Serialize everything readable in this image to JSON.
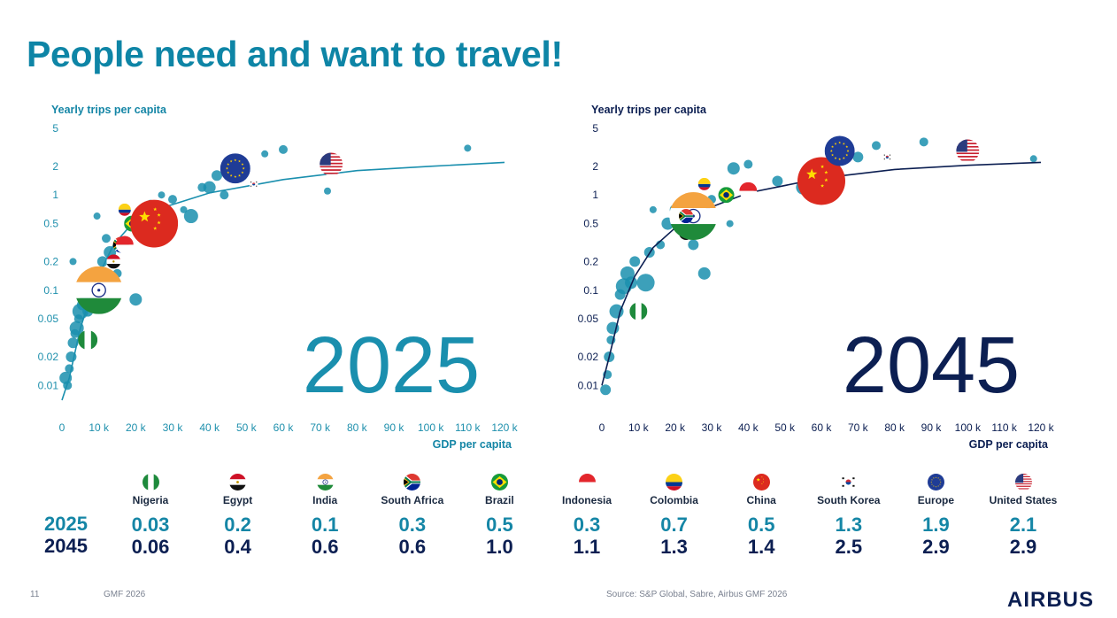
{
  "title": "People need and want to travel!",
  "chart_data": [
    {
      "type": "scatter",
      "year_label": "2025",
      "ylabel": "Yearly trips per capita",
      "xlabel": "GDP per capita",
      "x_ticks": [
        "0",
        "10 k",
        "20 k",
        "30 k",
        "40 k",
        "50 k",
        "60 k",
        "70 k",
        "80 k",
        "90 k",
        "100 k",
        "110 k",
        "120 k"
      ],
      "y_ticks": [
        "5",
        "2",
        "1",
        "0.5",
        "0.2",
        "0.1",
        "0.05",
        "0.02",
        "0.01"
      ],
      "xlim": [
        0,
        120000
      ],
      "y_scale": "log",
      "ylim": [
        0.007,
        5
      ],
      "accent": "#1a8fae",
      "curve": [
        [
          0,
          0.007
        ],
        [
          2000,
          0.012
        ],
        [
          5000,
          0.04
        ],
        [
          9000,
          0.12
        ],
        [
          14000,
          0.3
        ],
        [
          20000,
          0.55
        ],
        [
          28000,
          0.75
        ],
        [
          40000,
          1.05
        ],
        [
          60000,
          1.45
        ],
        [
          80000,
          1.8
        ],
        [
          100000,
          2.0
        ],
        [
          120000,
          2.2
        ]
      ],
      "countries": [
        {
          "key": "nigeria",
          "x": 7000,
          "y": 0.03
        },
        {
          "key": "egypt",
          "x": 14000,
          "y": 0.2
        },
        {
          "key": "india",
          "x": 10000,
          "y": 0.1
        },
        {
          "key": "south_africa",
          "x": 16000,
          "y": 0.3
        },
        {
          "key": "brazil",
          "x": 19000,
          "y": 0.5
        },
        {
          "key": "indonesia",
          "x": 17000,
          "y": 0.3
        },
        {
          "key": "colombia",
          "x": 17000,
          "y": 0.7
        },
        {
          "key": "china",
          "x": 25000,
          "y": 0.5
        },
        {
          "key": "south_korea",
          "x": 52000,
          "y": 1.3
        },
        {
          "key": "europe",
          "x": 47000,
          "y": 1.9
        },
        {
          "key": "united_states",
          "x": 73000,
          "y": 2.1
        }
      ],
      "bubbles": [
        [
          1000,
          0.012,
          7
        ],
        [
          1500,
          0.01,
          5
        ],
        [
          2000,
          0.015,
          5
        ],
        [
          2500,
          0.02,
          6
        ],
        [
          3000,
          0.028,
          6
        ],
        [
          3500,
          0.035,
          5
        ],
        [
          4000,
          0.04,
          8
        ],
        [
          4500,
          0.05,
          5
        ],
        [
          5000,
          0.06,
          9
        ],
        [
          5500,
          0.07,
          6
        ],
        [
          6000,
          0.08,
          5
        ],
        [
          7000,
          0.06,
          6
        ],
        [
          8000,
          0.09,
          7
        ],
        [
          9000,
          0.15,
          5
        ],
        [
          11000,
          0.2,
          6
        ],
        [
          12000,
          0.35,
          5
        ],
        [
          13000,
          0.25,
          7
        ],
        [
          15000,
          0.15,
          5
        ],
        [
          22000,
          0.4,
          6
        ],
        [
          24000,
          0.8,
          5
        ],
        [
          30000,
          0.9,
          5
        ],
        [
          33000,
          0.7,
          4
        ],
        [
          35000,
          0.6,
          8
        ],
        [
          38000,
          1.2,
          5
        ],
        [
          42000,
          1.6,
          6
        ],
        [
          44000,
          1.0,
          5
        ],
        [
          55000,
          2.7,
          4
        ],
        [
          60000,
          3.0,
          5
        ],
        [
          72000,
          1.1,
          4
        ],
        [
          110000,
          3.1,
          4
        ],
        [
          20000,
          0.08,
          7
        ],
        [
          27000,
          1.0,
          4
        ],
        [
          9500,
          0.6,
          4
        ],
        [
          3000,
          0.2,
          4
        ],
        [
          40000,
          1.2,
          7
        ]
      ]
    },
    {
      "type": "scatter",
      "year_label": "2045",
      "ylabel": "Yearly trips per capita",
      "xlabel": "GDP per capita",
      "x_ticks": [
        "0",
        "10 k",
        "20 k",
        "30 k",
        "40 k",
        "50 k",
        "60 k",
        "70 k",
        "80 k",
        "90 k",
        "100 k",
        "110 k",
        "120 k"
      ],
      "y_ticks": [
        "5",
        "2",
        "1",
        "0.5",
        "0.2",
        "0.1",
        "0.05",
        "0.02",
        "0.01"
      ],
      "xlim": [
        0,
        120000
      ],
      "y_scale": "log",
      "ylim": [
        0.007,
        5
      ],
      "accent": "#0c1f52",
      "curve": [
        [
          0,
          0.01
        ],
        [
          2000,
          0.02
        ],
        [
          5000,
          0.06
        ],
        [
          9000,
          0.14
        ],
        [
          14000,
          0.28
        ],
        [
          20000,
          0.45
        ],
        [
          28000,
          0.7
        ],
        [
          40000,
          1.05
        ],
        [
          60000,
          1.5
        ],
        [
          80000,
          1.85
        ],
        [
          100000,
          2.05
        ],
        [
          120000,
          2.2
        ]
      ],
      "countries": [
        {
          "key": "nigeria",
          "x": 10000,
          "y": 0.06
        },
        {
          "key": "egypt",
          "x": 23000,
          "y": 0.4
        },
        {
          "key": "india",
          "x": 25000,
          "y": 0.6
        },
        {
          "key": "south_africa",
          "x": 23000,
          "y": 0.6
        },
        {
          "key": "brazil",
          "x": 34000,
          "y": 1.0
        },
        {
          "key": "indonesia",
          "x": 40000,
          "y": 1.1
        },
        {
          "key": "colombia",
          "x": 28000,
          "y": 1.3
        },
        {
          "key": "china",
          "x": 60000,
          "y": 1.4
        },
        {
          "key": "south_korea",
          "x": 78000,
          "y": 2.5
        },
        {
          "key": "europe",
          "x": 65000,
          "y": 2.9
        },
        {
          "key": "united_states",
          "x": 100000,
          "y": 2.9
        }
      ],
      "bubbles": [
        [
          1000,
          0.009,
          6
        ],
        [
          1500,
          0.013,
          5
        ],
        [
          2000,
          0.02,
          6
        ],
        [
          2500,
          0.03,
          5
        ],
        [
          3000,
          0.04,
          7
        ],
        [
          4000,
          0.06,
          8
        ],
        [
          5000,
          0.09,
          6
        ],
        [
          6000,
          0.11,
          9
        ],
        [
          7000,
          0.15,
          8
        ],
        [
          8000,
          0.12,
          7
        ],
        [
          9000,
          0.2,
          6
        ],
        [
          12000,
          0.12,
          10
        ],
        [
          13000,
          0.25,
          6
        ],
        [
          16000,
          0.3,
          5
        ],
        [
          18000,
          0.5,
          7
        ],
        [
          20000,
          0.7,
          6
        ],
        [
          25000,
          0.3,
          6
        ],
        [
          28000,
          0.15,
          7
        ],
        [
          30000,
          0.9,
          5
        ],
        [
          36000,
          1.9,
          7
        ],
        [
          40000,
          2.1,
          5
        ],
        [
          48000,
          1.4,
          6
        ],
        [
          55000,
          1.2,
          8
        ],
        [
          70000,
          2.5,
          6
        ],
        [
          75000,
          3.3,
          5
        ],
        [
          88000,
          3.6,
          5
        ],
        [
          118000,
          2.4,
          4
        ],
        [
          130000,
          0,
          0
        ],
        [
          14000,
          0.7,
          4
        ],
        [
          22000,
          0.55,
          5
        ],
        [
          35000,
          0.5,
          4
        ]
      ]
    }
  ],
  "table": {
    "row_labels": {
      "y2025": "2025",
      "y2045": "2045"
    },
    "countries": [
      {
        "key": "nigeria",
        "name": "Nigeria",
        "v2025": "0.03",
        "v2045": "0.06"
      },
      {
        "key": "egypt",
        "name": "Egypt",
        "v2025": "0.2",
        "v2045": "0.4"
      },
      {
        "key": "india",
        "name": "India",
        "v2025": "0.1",
        "v2045": "0.6"
      },
      {
        "key": "south_africa",
        "name": "South Africa",
        "v2025": "0.3",
        "v2045": "0.6"
      },
      {
        "key": "brazil",
        "name": "Brazil",
        "v2025": "0.5",
        "v2045": "1.0"
      },
      {
        "key": "indonesia",
        "name": "Indonesia",
        "v2025": "0.3",
        "v2045": "1.1"
      },
      {
        "key": "colombia",
        "name": "Colombia",
        "v2025": "0.7",
        "v2045": "1.3"
      },
      {
        "key": "china",
        "name": "China",
        "v2025": "0.5",
        "v2045": "1.4"
      },
      {
        "key": "south_korea",
        "name": "South Korea",
        "v2025": "1.3",
        "v2045": "2.5"
      },
      {
        "key": "europe",
        "name": "Europe",
        "v2025": "1.9",
        "v2045": "2.9"
      },
      {
        "key": "united_states",
        "name": "United States",
        "v2025": "2.1",
        "v2045": "2.9"
      }
    ]
  },
  "footer": {
    "page_number": "11",
    "doc_label": "GMF 2026",
    "source": "Source: S&P Global, Sabre, Airbus GMF 2026",
    "logo": "AIRBUS"
  },
  "colors": {
    "title": "#0e85a6",
    "value_2025": "#1586a6",
    "value_2045": "#0c1f52",
    "bubble": "#1a8fae"
  }
}
